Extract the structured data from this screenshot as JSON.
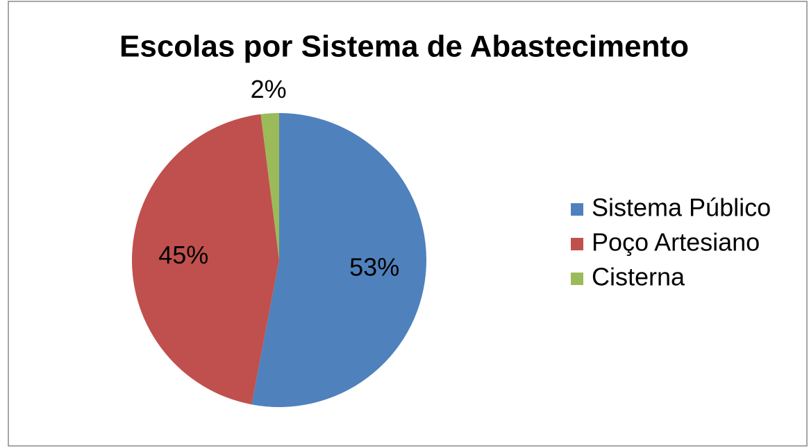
{
  "chart_data": {
    "type": "pie",
    "title": "Escolas por Sistema de Abastecimento",
    "categories": [
      "Sistema Público",
      "Poço Artesiano",
      "Cisterna"
    ],
    "values": [
      53,
      45,
      2
    ],
    "value_labels": [
      "53%",
      "45%",
      "2%"
    ],
    "colors": [
      "#4f81bd",
      "#c0504d",
      "#9bbb59"
    ],
    "legend": "right"
  }
}
